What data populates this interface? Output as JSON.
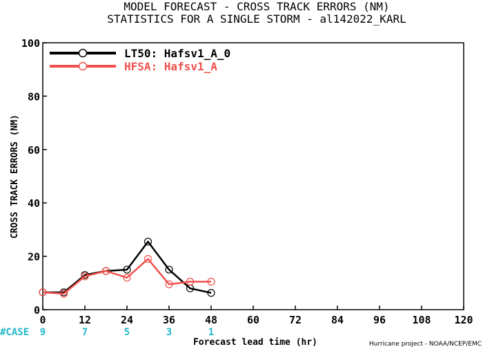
{
  "chart_data": {
    "type": "line",
    "title": "MODEL FORECAST - CROSS TRACK ERRORS (NM)",
    "subtitle": "STATISTICS FOR A SINGLE STORM - al142022_KARL",
    "xlabel": "Forecast lead time (hr)",
    "ylabel": "CROSS TRACK ERRORS (NM)",
    "xlim": [
      0,
      120
    ],
    "ylim": [
      0,
      100
    ],
    "x_ticks": [
      0,
      12,
      24,
      36,
      48,
      60,
      72,
      84,
      96,
      108,
      120
    ],
    "y_ticks": [
      0,
      20,
      40,
      60,
      80,
      100
    ],
    "grid": false,
    "legend_position": "top-left",
    "series": [
      {
        "name": "LT50: Hafsv1_A_0",
        "color": "#000000",
        "x": [
          0,
          6,
          12,
          18,
          24,
          30,
          36,
          42,
          48
        ],
        "values": [
          6.5,
          6.5,
          13.0,
          14.5,
          15.0,
          25.5,
          15.0,
          8.0,
          6.3
        ]
      },
      {
        "name": "HFSA: Hafsv1_A",
        "color": "#f0504c",
        "x": [
          0,
          6,
          12,
          18,
          24,
          30,
          36,
          42,
          48
        ],
        "values": [
          6.5,
          6.0,
          12.5,
          14.5,
          12.0,
          19.0,
          9.5,
          10.5,
          10.5
        ]
      }
    ],
    "case_label": "#CASE",
    "case_counts": [
      {
        "x": 0,
        "count": "9"
      },
      {
        "x": 12,
        "count": "7"
      },
      {
        "x": 24,
        "count": "5"
      },
      {
        "x": 36,
        "count": "3"
      },
      {
        "x": 48,
        "count": "1"
      }
    ],
    "credit": "Hurricane project - NOAA/NCEP/EMC",
    "case_color": "#22b8c8"
  }
}
